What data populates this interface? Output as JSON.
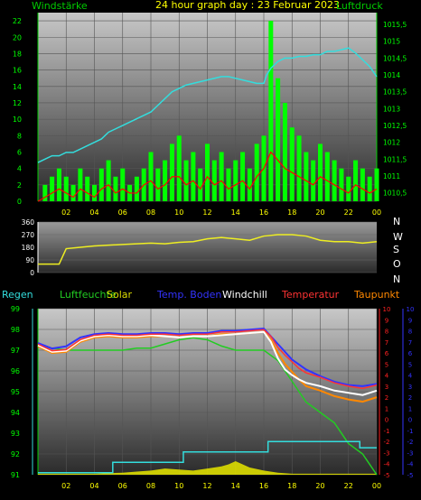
{
  "header": {
    "title": "24 hour graph day : 23 Februar 2023",
    "left_label": "Windstärke",
    "right_label": "Luftdruck"
  },
  "colors": {
    "wind": "#00ff00",
    "gust": "#ff0000",
    "pressure": "#33dddd",
    "direction": "#eeee22",
    "rain": "#33dddd",
    "humidity": "#22cc22",
    "solar": "#dddd00",
    "soil_temp": "#3333ff",
    "windchill": "#ffffff",
    "temperature": "#ff3333",
    "dewpoint": "#ff8800",
    "axis_green": "#00cc00",
    "axis_red": "#ff2222",
    "axis_blue": "#3333ff"
  },
  "compass": [
    "N",
    "W",
    "S",
    "O",
    "N"
  ],
  "bottom_legend": {
    "rain": "Regen",
    "humidity": "Luftfeuchte",
    "solar": "Solar",
    "soil_temp": "Temp. Boden",
    "windchill": "Windchill",
    "temperature": "Temperatur",
    "dewpoint": "Taupunkt"
  },
  "chart_data": [
    {
      "type": "line",
      "name": "wind-pressure",
      "x_ticks": [
        "02",
        "04",
        "06",
        "08",
        "10",
        "12",
        "14",
        "16",
        "18",
        "20",
        "22",
        "00"
      ],
      "xlim": [
        0,
        24
      ],
      "left_axis": {
        "label": "Windstärke",
        "ticks": [
          0,
          2,
          4,
          6,
          8,
          10,
          12,
          14,
          16,
          18,
          20,
          22
        ],
        "ylim": [
          0,
          23
        ]
      },
      "right_axis": {
        "label": "Luftdruck",
        "ticks": [
          "1010,5",
          "1011",
          "1011,5",
          "1012",
          "1012,5",
          "1013",
          "1013,5",
          "1014",
          "1014,5",
          "1015",
          "1015,5"
        ],
        "ylim": [
          1010.25,
          1015.85
        ]
      },
      "series": [
        {
          "key": "pressure",
          "axis": "right",
          "x": [
            0,
            0.5,
            1,
            1.5,
            2,
            2.5,
            3,
            3.5,
            4,
            4.5,
            5,
            5.5,
            6,
            6.5,
            7,
            7.5,
            8,
            8.5,
            9,
            9.5,
            10,
            10.5,
            11,
            11.5,
            12,
            12.5,
            13,
            13.5,
            14,
            14.5,
            15,
            15.5,
            16,
            16.2,
            16.5,
            17,
            17.5,
            18,
            18.5,
            19,
            19.5,
            20,
            20.5,
            21,
            21.5,
            22,
            22.5,
            23,
            23.5,
            24
          ],
          "values": [
            1011.4,
            1011.5,
            1011.6,
            1011.6,
            1011.7,
            1011.7,
            1011.8,
            1011.9,
            1012.0,
            1012.1,
            1012.3,
            1012.4,
            1012.5,
            1012.6,
            1012.7,
            1012.8,
            1012.9,
            1013.1,
            1013.3,
            1013.5,
            1013.6,
            1013.7,
            1013.75,
            1013.8,
            1013.85,
            1013.9,
            1013.95,
            1013.95,
            1013.9,
            1013.85,
            1013.8,
            1013.75,
            1013.75,
            1014.0,
            1014.2,
            1014.4,
            1014.5,
            1014.5,
            1014.55,
            1014.55,
            1014.6,
            1014.6,
            1014.7,
            1014.7,
            1014.75,
            1014.8,
            1014.65,
            1014.45,
            1014.25,
            1013.95
          ]
        },
        {
          "key": "wind",
          "axis": "left",
          "style": "bars",
          "x": [
            0,
            0.5,
            1,
            1.5,
            2,
            2.5,
            3,
            3.5,
            4,
            4.5,
            5,
            5.5,
            6,
            6.5,
            7,
            7.5,
            8,
            8.5,
            9,
            9.5,
            10,
            10.5,
            11,
            11.5,
            12,
            12.5,
            13,
            13.5,
            14,
            14.5,
            15,
            15.5,
            16,
            16.5,
            17,
            17.5,
            18,
            18.5,
            19,
            19.5,
            20,
            20.5,
            21,
            21.5,
            22,
            22.5,
            23,
            23.5,
            24
          ],
          "values": [
            0,
            2,
            3,
            4,
            3,
            2,
            4,
            3,
            2,
            4,
            5,
            3,
            4,
            2,
            3,
            4,
            6,
            4,
            5,
            7,
            8,
            5,
            6,
            4,
            7,
            5,
            6,
            4,
            5,
            6,
            4,
            7,
            8,
            22,
            15,
            12,
            9,
            8,
            6,
            5,
            7,
            6,
            5,
            4,
            3,
            5,
            4,
            3,
            4
          ]
        },
        {
          "key": "gust",
          "axis": "left",
          "x": [
            0,
            0.5,
            1,
            1.5,
            2,
            2.5,
            3,
            3.5,
            4,
            4.5,
            5,
            5.5,
            6,
            6.5,
            7,
            7.5,
            8,
            8.5,
            9,
            9.5,
            10,
            10.5,
            11,
            11.5,
            12,
            12.5,
            13,
            13.5,
            14,
            14.5,
            15,
            15.5,
            16,
            16.5,
            17,
            17.5,
            18,
            18.5,
            19,
            19.5,
            20,
            20.5,
            21,
            21.5,
            22,
            22.5,
            23,
            23.5,
            24
          ],
          "values": [
            0,
            0.5,
            1,
            1.5,
            1,
            0.5,
            1.5,
            1,
            0.5,
            1.5,
            2,
            1,
            1.5,
            1,
            1,
            2,
            2.5,
            1.5,
            2,
            3,
            3,
            2,
            2.5,
            1.5,
            3,
            2,
            2.5,
            1.5,
            2,
            2.5,
            1.5,
            3,
            4,
            6,
            5,
            4,
            3.5,
            3,
            2.5,
            2,
            3,
            2.5,
            2,
            1.5,
            1,
            2,
            1.5,
            1,
            1.5
          ]
        }
      ]
    },
    {
      "type": "line",
      "name": "wind-direction",
      "left_axis": {
        "ticks": [
          0,
          90,
          180,
          270,
          360
        ],
        "ylim": [
          0,
          360
        ]
      },
      "series": [
        {
          "key": "direction",
          "x": [
            0,
            0.5,
            1,
            1.5,
            2,
            3,
            4,
            5,
            6,
            7,
            8,
            9,
            10,
            11,
            12,
            13,
            14,
            15,
            16,
            17,
            18,
            19,
            20,
            21,
            22,
            23,
            24
          ],
          "values": [
            60,
            60,
            60,
            60,
            170,
            180,
            190,
            195,
            200,
            205,
            210,
            205,
            215,
            220,
            240,
            250,
            240,
            230,
            260,
            270,
            270,
            260,
            230,
            220,
            220,
            210,
            220
          ]
        }
      ]
    },
    {
      "type": "line",
      "name": "temperature-humidity",
      "x_ticks": [
        "02",
        "04",
        "06",
        "08",
        "10",
        "12",
        "14",
        "16",
        "18",
        "20",
        "22",
        "00"
      ],
      "xlim": [
        0,
        24
      ],
      "left_axis": {
        "label": "Regen / Luftfeuchte",
        "ticks": [
          91,
          92,
          93,
          94,
          95,
          96,
          97,
          98,
          99
        ],
        "ylim": [
          91,
          99
        ]
      },
      "right_axis_red": {
        "ticks": [
          -5,
          -4,
          -3,
          -2,
          -1,
          0,
          1,
          2,
          3,
          4,
          5,
          6,
          7,
          8,
          9,
          10
        ],
        "ylim": [
          -5,
          10
        ]
      },
      "right_axis_blue": {
        "ticks": [
          -5,
          -4,
          -3,
          -2,
          -1,
          0,
          1,
          2,
          3,
          4,
          5,
          6,
          7,
          8,
          9,
          10
        ],
        "ylim": [
          -5,
          10
        ]
      },
      "series": [
        {
          "key": "humidity",
          "axis": "left",
          "x": [
            0,
            1,
            2,
            3,
            4,
            5,
            6,
            7,
            8,
            9,
            10,
            11,
            12,
            13,
            14,
            15,
            16,
            17,
            18,
            19,
            20,
            21,
            22,
            23,
            24
          ],
          "values": [
            97.2,
            97.1,
            97.0,
            97.0,
            97.0,
            97.0,
            97.0,
            97.1,
            97.1,
            97.3,
            97.5,
            97.6,
            97.5,
            97.2,
            97.0,
            97.0,
            97.0,
            96.5,
            95.5,
            94.5,
            94.0,
            93.5,
            92.5,
            92.0,
            91.0
          ]
        },
        {
          "key": "temperature",
          "axis": "right",
          "x": [
            0,
            0.5,
            1,
            2,
            3,
            4,
            5,
            6,
            7,
            8,
            9,
            10,
            11,
            12,
            13,
            14,
            15,
            16,
            16.5,
            17,
            17.5,
            18,
            18.5,
            19,
            20,
            21,
            22,
            23,
            24
          ],
          "values": [
            6.8,
            6.5,
            6.2,
            6.3,
            7.2,
            7.6,
            7.7,
            7.6,
            7.6,
            7.7,
            7.7,
            7.6,
            7.7,
            7.7,
            7.9,
            7.9,
            8.0,
            8.1,
            7.5,
            6.5,
            5.8,
            5.2,
            4.6,
            4.2,
            3.8,
            3.3,
            3.0,
            2.8,
            3.1
          ]
        },
        {
          "key": "windchill",
          "axis": "right",
          "x": [
            0,
            0.5,
            1,
            2,
            3,
            4,
            5,
            6,
            7,
            8,
            9,
            10,
            11,
            12,
            13,
            14,
            15,
            16,
            16.5,
            17,
            17.5,
            18,
            18.5,
            19,
            20,
            21,
            22,
            23,
            24
          ],
          "values": [
            6.7,
            6.4,
            6.1,
            6.2,
            7.1,
            7.5,
            7.6,
            7.5,
            7.5,
            7.6,
            7.5,
            7.4,
            7.5,
            7.5,
            7.6,
            7.7,
            7.8,
            7.9,
            7.0,
            5.5,
            4.5,
            4.0,
            3.6,
            3.3,
            3.0,
            2.6,
            2.4,
            2.2,
            2.6
          ]
        },
        {
          "key": "dewpoint",
          "axis": "right",
          "x": [
            0,
            0.5,
            1,
            2,
            3,
            4,
            5,
            6,
            7,
            8,
            9,
            10,
            11,
            12,
            13,
            14,
            15,
            16,
            16.5,
            17,
            17.5,
            18,
            18.5,
            19,
            20,
            21,
            22,
            23,
            24
          ],
          "values": [
            6.6,
            6.3,
            6.0,
            6.1,
            7.0,
            7.4,
            7.5,
            7.4,
            7.4,
            7.5,
            7.5,
            7.4,
            7.5,
            7.5,
            7.7,
            7.7,
            7.8,
            7.9,
            7.2,
            6.0,
            5.0,
            4.3,
            3.6,
            3.0,
            2.6,
            2.1,
            1.8,
            1.6,
            2.0
          ]
        },
        {
          "key": "soil_temp",
          "axis": "right",
          "x": [
            0,
            1,
            2,
            3,
            4,
            5,
            6,
            7,
            8,
            9,
            10,
            11,
            12,
            13,
            14,
            15,
            16,
            17,
            18,
            19,
            20,
            21,
            22,
            23,
            24
          ],
          "values": [
            6.9,
            6.4,
            6.6,
            7.4,
            7.7,
            7.8,
            7.7,
            7.7,
            7.8,
            7.8,
            7.7,
            7.8,
            7.8,
            8.0,
            8.0,
            8.1,
            8.2,
            6.8,
            5.4,
            4.5,
            3.9,
            3.4,
            3.1,
            3.0,
            3.2
          ]
        },
        {
          "key": "rain",
          "axis": "left",
          "x": [
            0,
            5.3,
            5.3,
            10.3,
            10.3,
            16.3,
            16.3,
            22.8,
            22.8,
            24
          ],
          "values": [
            91.1,
            91.1,
            91.6,
            91.6,
            92.1,
            92.1,
            92.6,
            92.6,
            92.3,
            92.3
          ]
        },
        {
          "key": "solar",
          "axis": "left",
          "x": [
            0,
            2,
            4,
            6,
            7,
            8,
            9,
            10,
            11,
            12,
            13,
            13.5,
            14,
            14.5,
            15,
            16,
            17,
            18,
            19,
            20,
            22,
            24
          ],
          "values": [
            91.05,
            91.05,
            91.05,
            91.1,
            91.15,
            91.2,
            91.3,
            91.25,
            91.2,
            91.3,
            91.4,
            91.5,
            91.65,
            91.5,
            91.35,
            91.2,
            91.1,
            91.05,
            91.05,
            91.05,
            91.05,
            91.05
          ]
        }
      ]
    }
  ]
}
